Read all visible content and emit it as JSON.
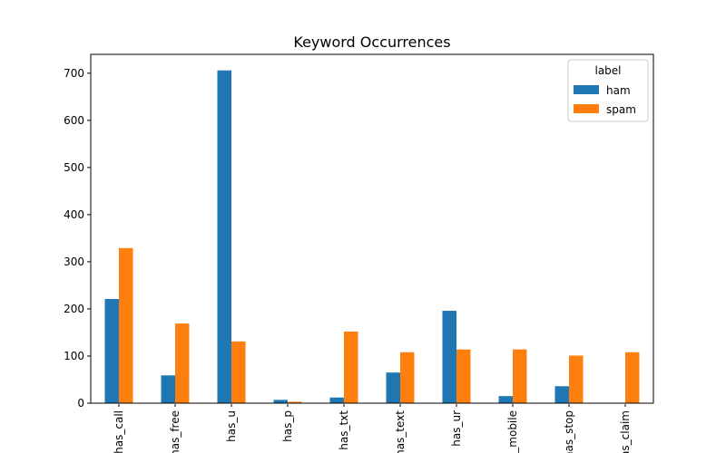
{
  "chart_data": {
    "type": "bar",
    "title": "Keyword Occurrences",
    "xlabel": "",
    "ylabel": "",
    "categories": [
      "has_call",
      "has_free",
      "has_u",
      "has_p",
      "has_txt",
      "has_text",
      "has_ur",
      "has_mobile",
      "has_stop",
      "has_claim"
    ],
    "series": [
      {
        "name": "ham",
        "color": "#1f77b4",
        "values": [
          221,
          59,
          706,
          7,
          12,
          65,
          196,
          15,
          36,
          0
        ]
      },
      {
        "name": "spam",
        "color": "#ff7f0e",
        "values": [
          329,
          169,
          131,
          3,
          152,
          108,
          114,
          114,
          101,
          108
        ]
      }
    ],
    "ylim": [
      0,
      740
    ],
    "yticks": [
      0,
      100,
      200,
      300,
      400,
      500,
      600,
      700
    ],
    "legend": {
      "title": "label",
      "placement": "top-right"
    },
    "grid": false
  }
}
